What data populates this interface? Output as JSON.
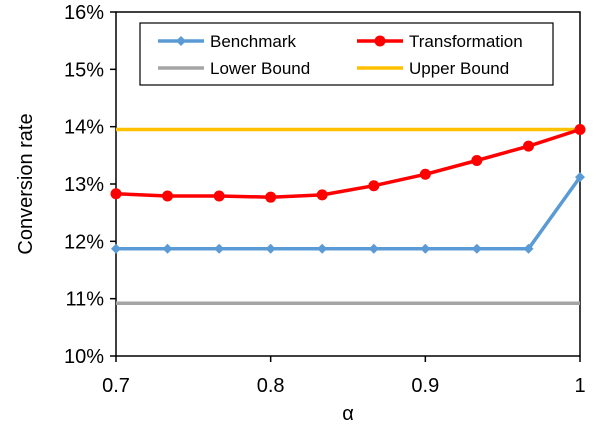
{
  "chart_data": {
    "type": "line",
    "title": "",
    "xlabel": "α",
    "ylabel": "Conversion rate",
    "xlim": [
      0.7,
      1.0
    ],
    "ylim": [
      0.1,
      0.16
    ],
    "x_ticks": [
      0.7,
      0.8,
      0.9,
      1.0
    ],
    "x_tick_labels": [
      "0.7",
      "0.8",
      "0.9",
      "1"
    ],
    "y_ticks": [
      0.1,
      0.11,
      0.12,
      0.13,
      0.14,
      0.15,
      0.16
    ],
    "y_tick_labels": [
      "10%",
      "11%",
      "12%",
      "13%",
      "14%",
      "15%",
      "16%"
    ],
    "grid": false,
    "legend_position": "top",
    "series": [
      {
        "name": "Benchmark",
        "color": "#5B9BD5",
        "marker": "diamond",
        "x": [
          0.7,
          0.7333,
          0.7667,
          0.8,
          0.8333,
          0.8667,
          0.9,
          0.9333,
          0.9667,
          1.0
        ],
        "values": [
          0.1187,
          0.1187,
          0.1187,
          0.1187,
          0.1187,
          0.1187,
          0.1187,
          0.1187,
          0.1187,
          0.1312
        ]
      },
      {
        "name": "Transformation",
        "color": "#FF0000",
        "marker": "circle",
        "x": [
          0.7,
          0.7333,
          0.7667,
          0.8,
          0.8333,
          0.8667,
          0.9,
          0.9333,
          0.9667,
          1.0
        ],
        "values": [
          0.1283,
          0.1279,
          0.1279,
          0.1277,
          0.1281,
          0.1297,
          0.1317,
          0.1341,
          0.1366,
          0.1395
        ]
      },
      {
        "name": "Lower Bound",
        "color": "#A5A5A5",
        "marker": "none",
        "x": [
          0.7,
          1.0
        ],
        "values": [
          0.1092,
          0.1092
        ]
      },
      {
        "name": "Upper Bound",
        "color": "#FFC000",
        "marker": "none",
        "x": [
          0.7,
          1.0
        ],
        "values": [
          0.1395,
          0.1395
        ]
      }
    ]
  }
}
